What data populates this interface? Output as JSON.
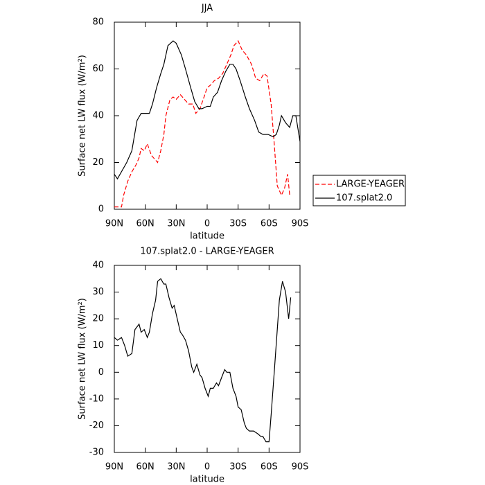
{
  "chart_data": [
    {
      "type": "line",
      "title": "JJA",
      "ylabel": "Surface net LW flux (W/m²)",
      "xlabel": "latitude",
      "xlim": [
        90,
        -90
      ],
      "xticks": [
        {
          "value": 90,
          "label": "90N"
        },
        {
          "value": 60,
          "label": "60N"
        },
        {
          "value": 30,
          "label": "30N"
        },
        0,
        {
          "value": -30,
          "label": "30S"
        },
        {
          "value": -60,
          "label": "60S"
        },
        {
          "value": -90,
          "label": "90S"
        }
      ],
      "ylim": [
        0,
        80
      ],
      "yticks": [
        0,
        20,
        40,
        60,
        80
      ],
      "legend": "right",
      "series": [
        {
          "name": "LARGE-YEAGER",
          "color": "#ff0000",
          "line_style": "dashed",
          "x": [
            90,
            87,
            83,
            81,
            77,
            73,
            69,
            66,
            64,
            61,
            58,
            54,
            50,
            48,
            45,
            42,
            40,
            36,
            33,
            30,
            26,
            22,
            18,
            14,
            11,
            7,
            3,
            0,
            -3,
            -7,
            -11,
            -15,
            -19,
            -23,
            -26,
            -30,
            -34,
            -38,
            -43,
            -47,
            -51,
            -55,
            -58,
            -62,
            -65,
            -68,
            -72,
            -75,
            -78,
            -80
          ],
          "values": [
            1,
            1,
            1,
            6,
            12,
            16,
            19,
            22,
            26,
            25,
            28,
            23,
            21,
            20,
            25,
            32,
            40,
            47,
            48,
            47,
            49,
            47,
            45,
            45,
            41,
            43,
            48,
            52,
            53,
            55,
            56,
            58,
            62,
            66,
            70,
            72,
            68,
            66,
            62,
            56,
            55,
            58,
            57,
            45,
            28,
            10,
            6,
            9,
            15,
            6
          ]
        },
        {
          "name": "107.splat2.0",
          "color": "#000000",
          "line_style": "solid",
          "x": [
            90,
            87,
            78,
            73,
            68,
            64,
            60,
            56,
            53,
            49,
            45,
            42,
            38,
            33,
            30,
            25,
            21,
            16,
            12,
            8,
            5,
            0,
            -3,
            -6,
            -10,
            -14,
            -18,
            -22,
            -25,
            -28,
            -32,
            -37,
            -41,
            -46,
            -50,
            -54,
            -59,
            -64,
            -67,
            -70,
            -72,
            -76,
            -80,
            -83,
            -86,
            -90
          ],
          "values": [
            15,
            13,
            20,
            25,
            38,
            41,
            41,
            41,
            45,
            52,
            58,
            62,
            70,
            72,
            71,
            66,
            60,
            52,
            46,
            43,
            43,
            44,
            44,
            48,
            50,
            55,
            59,
            62,
            62,
            60,
            55,
            48,
            43,
            38,
            33,
            32,
            32,
            31,
            32,
            36,
            40,
            37,
            35,
            40,
            40,
            29
          ]
        }
      ]
    },
    {
      "type": "line",
      "title": "107.splat2.0 - LARGE-YEAGER",
      "ylabel": "Surface net LW flux (W/m²)",
      "xlabel": "latitude",
      "xlim": [
        90,
        -90
      ],
      "xticks": [
        {
          "value": 90,
          "label": "90N"
        },
        {
          "value": 60,
          "label": "60N"
        },
        {
          "value": 30,
          "label": "30N"
        },
        0,
        {
          "value": -30,
          "label": "30S"
        },
        {
          "value": -60,
          "label": "60S"
        },
        {
          "value": -90,
          "label": "90S"
        }
      ],
      "ylim": [
        -30,
        40
      ],
      "yticks": [
        -30,
        -20,
        -10,
        0,
        10,
        20,
        30,
        40
      ],
      "series": [
        {
          "color": "#000000",
          "line_style": "solid",
          "x": [
            90,
            87,
            83,
            80,
            77,
            73,
            70,
            66,
            64,
            61,
            58,
            56,
            53,
            50,
            48,
            45,
            42,
            40,
            37,
            34,
            32,
            29,
            26,
            24,
            21,
            18,
            15,
            13,
            10,
            7,
            5,
            2,
            -1,
            -3,
            -6,
            -9,
            -11,
            -14,
            -17,
            -19,
            -22,
            -25,
            -28,
            -30,
            -33,
            -36,
            -38,
            -41,
            -45,
            -49,
            -52,
            -54,
            -57,
            -60,
            -62,
            -65,
            -68,
            -70,
            -73,
            -76,
            -79,
            -81
          ],
          "values": [
            13,
            12,
            13,
            10,
            6,
            7,
            16,
            18,
            15,
            16,
            13,
            15,
            22,
            27,
            34,
            35,
            33,
            33,
            28,
            24,
            25,
            20,
            15,
            14,
            12,
            8,
            2,
            0,
            3,
            -1,
            -2,
            -6,
            -9,
            -6,
            -6,
            -4,
            -5,
            -2,
            1,
            0,
            0,
            -6,
            -9,
            -13,
            -14,
            -19,
            -21,
            -22,
            -22,
            -23,
            -24,
            -24,
            -26,
            -26,
            -16,
            0,
            16,
            27,
            34,
            30,
            20,
            28
          ]
        }
      ]
    }
  ]
}
